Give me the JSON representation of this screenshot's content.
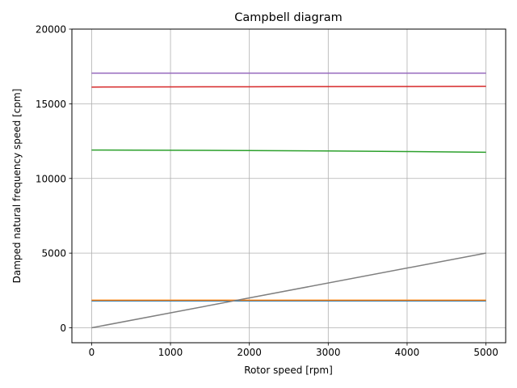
{
  "chart_data": {
    "type": "line",
    "title": "Campbell diagram",
    "xlabel": "Rotor speed [rpm]",
    "ylabel": "Damped natural frequency speed [cpm]",
    "xlim": [
      -250,
      5250
    ],
    "ylim": [
      -1000,
      20000
    ],
    "xticks": [
      0,
      1000,
      2000,
      3000,
      4000,
      5000
    ],
    "yticks": [
      0,
      5000,
      10000,
      15000,
      20000
    ],
    "xtick_labels": [
      "0",
      "1000",
      "2000",
      "3000",
      "4000",
      "5000"
    ],
    "ytick_labels": [
      "0",
      "5000",
      "10000",
      "15000",
      "20000"
    ],
    "grid": true,
    "legend": "none",
    "series": [
      {
        "color": "#1f77b4",
        "x": [
          0,
          5000
        ],
        "y": [
          1800,
          1800
        ]
      },
      {
        "color": "#ff7f0e",
        "x": [
          0,
          5000
        ],
        "y": [
          1850,
          1850
        ]
      },
      {
        "color": "#2ca02c",
        "x": [
          0,
          1000,
          2000,
          3000,
          4000,
          5000
        ],
        "y": [
          11900,
          11890,
          11870,
          11840,
          11800,
          11750
        ]
      },
      {
        "color": "#d62728",
        "x": [
          0,
          1000,
          2000,
          3000,
          4000,
          5000
        ],
        "y": [
          16120,
          16130,
          16140,
          16150,
          16160,
          16170
        ]
      },
      {
        "color": "#9467bd",
        "x": [
          0,
          5000
        ],
        "y": [
          17050,
          17050
        ]
      },
      {
        "color": "#7f7f7f",
        "x": [
          0,
          5000
        ],
        "y": [
          0,
          5000
        ]
      }
    ]
  }
}
